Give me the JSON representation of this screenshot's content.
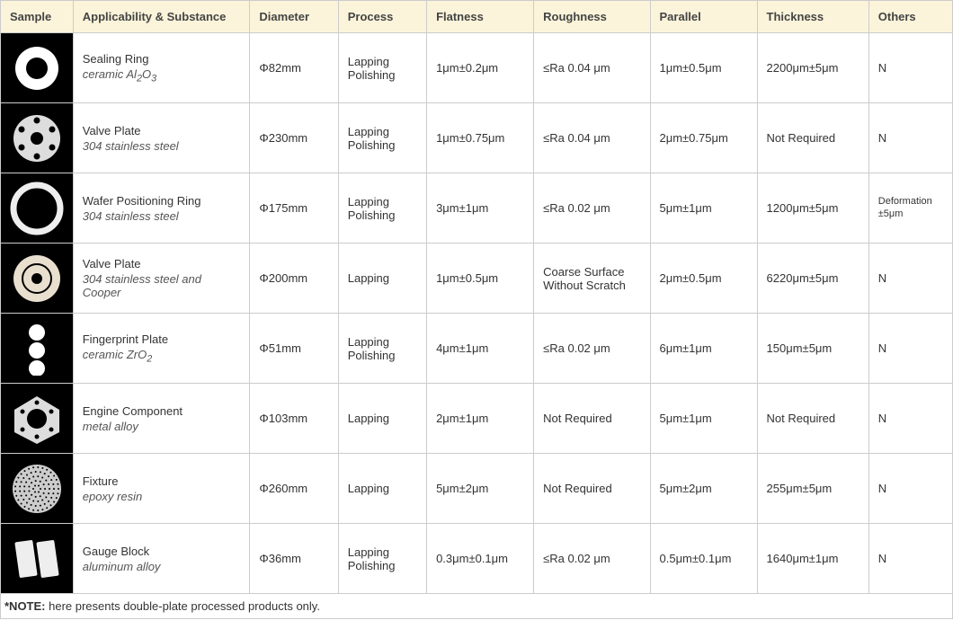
{
  "columns": [
    "Sample",
    "Applicability & Substance",
    "Diameter",
    "Process",
    "Flatness",
    "Roughness",
    "Parallel",
    "Thickness",
    "Others"
  ],
  "rows": [
    {
      "icon": "sealing-ring",
      "name": "Sealing Ring",
      "substance_html": "ceramic Al<sub>2</sub>O<sub>3</sub>",
      "diameter": "Φ82mm",
      "process": "Lapping\nPolishing",
      "flatness": "1μm±0.2μm",
      "roughness": "≤Ra 0.04  μm",
      "parallel": "1μm±0.5μm",
      "thickness": "2200μm±5μm",
      "others": "N",
      "others_small": false
    },
    {
      "icon": "valve-plate-1",
      "name": "Valve Plate",
      "substance_html": "304 stainless steel",
      "diameter": "Φ230mm",
      "process": "Lapping\nPolishing",
      "flatness": "1μm±0.75μm",
      "roughness": "≤Ra 0.04  μm",
      "parallel": "2μm±0.75μm",
      "thickness": "Not Required",
      "others": "N",
      "others_small": false
    },
    {
      "icon": "wafer-ring",
      "name": "Wafer Positioning Ring",
      "substance_html": "3<i>04 stainless steel</i>",
      "diameter": "Φ175mm",
      "process": "Lapping\nPolishing",
      "flatness": "3μm±1μm",
      "roughness": "≤Ra 0.02  μm",
      "parallel": "5μm±1μm",
      "thickness": "1200μm±5μm",
      "others": "Deformation\n±5μm",
      "others_small": true
    },
    {
      "icon": "valve-plate-2",
      "name": "Valve Plate",
      "substance_html": "304 stainless steel and Cooper",
      "diameter": "Φ200mm",
      "process": "Lapping",
      "flatness": "1μm±0.5μm",
      "roughness": "Coarse Surface Without Scratch",
      "parallel": "2μm±0.5μm",
      "thickness": "6220μm±5μm",
      "others": "N",
      "others_small": false
    },
    {
      "icon": "fingerprint-plate",
      "name": "Fingerprint Plate",
      "substance_html": "ceramic ZrO<sub>2</sub>",
      "diameter": "Φ51mm",
      "process": "Lapping\nPolishing",
      "flatness": "4μm±1μm",
      "roughness": "≤Ra 0.02  μm",
      "parallel": "6μm±1μm",
      "thickness": "150μm±5μm",
      "others": "N",
      "others_small": false
    },
    {
      "icon": "engine-component",
      "name": "Engine Component",
      "substance_html": "metal alloy",
      "diameter": "Φ103mm",
      "process": "Lapping",
      "flatness": "2μm±1μm",
      "roughness": "Not Required",
      "parallel": "5μm±1μm",
      "thickness": "Not Required",
      "others": "N",
      "others_small": false
    },
    {
      "icon": "fixture",
      "name": "Fixture",
      "substance_html": "epoxy resin",
      "diameter": "Φ260mm",
      "process": "Lapping",
      "flatness": "5μm±2μm",
      "roughness": "Not Required",
      "parallel": "5μm±2μm",
      "thickness": "255μm±5μm",
      "others": "N",
      "others_small": false
    },
    {
      "icon": "gauge-block",
      "name": "Gauge Block",
      "substance_html": "aluminum alloy",
      "diameter": "Φ36mm",
      "process": "Lapping\nPolishing",
      "flatness": "0.3μm±0.1μm",
      "roughness": "≤Ra 0.02  μm",
      "parallel": "0.5μm±0.1μm",
      "thickness": "1640μm±1μm",
      "others": "N",
      "others_small": false
    }
  ],
  "note_label": "*NOTE:",
  "note_text": " here presents double-plate processed products only.",
  "colors": {
    "header_bg": "#fbf4da",
    "border": "#cccccc",
    "sample_bg": "#000000",
    "text": "#333333"
  }
}
